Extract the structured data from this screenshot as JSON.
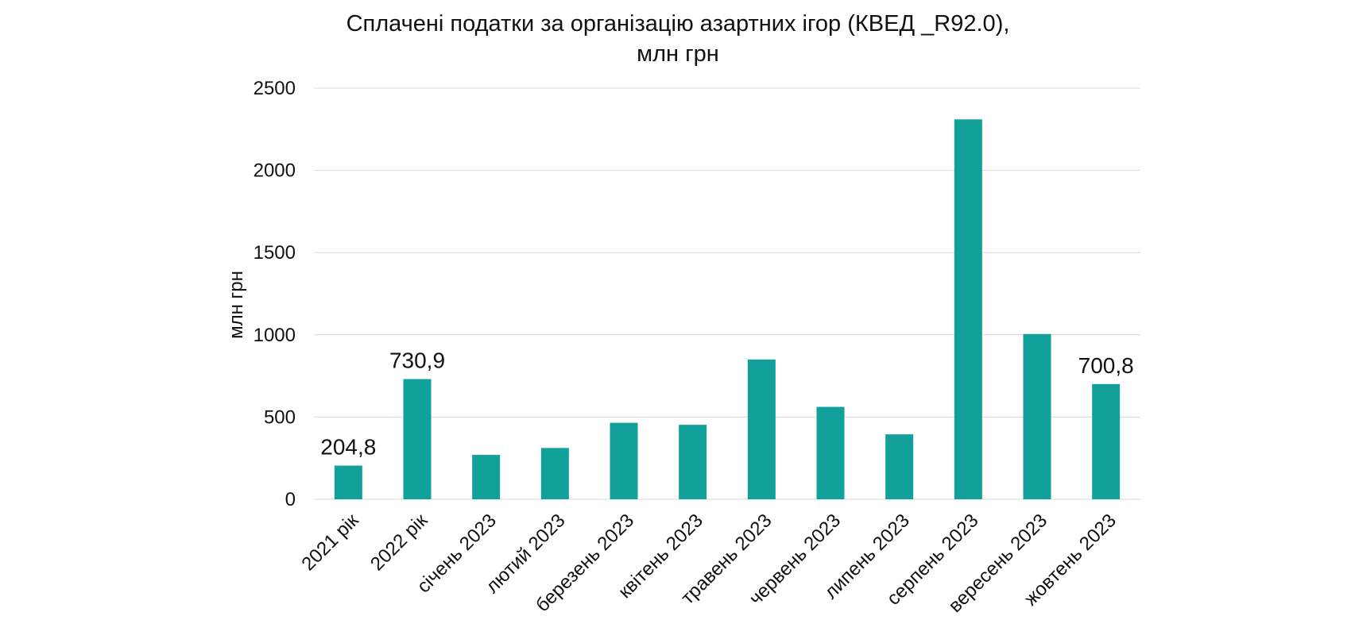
{
  "chart_data": {
    "type": "bar",
    "title_line1": "Сплачені податки за організацію азартних ігор (КВЕД _R92.0),",
    "title_line2": "млн грн",
    "ylabel": "млн грн",
    "xlabel": "",
    "ylim": [
      0,
      2500
    ],
    "yticks": [
      0,
      500,
      1000,
      1500,
      2000,
      2500
    ],
    "grid": true,
    "bar_color": "#12a19a",
    "categories": [
      "2021 рік",
      "2022 рік",
      "січень 2023",
      "лютий 2023",
      "березень 2023",
      "квітень 2023",
      "травень 2023",
      "червень 2023",
      "липень 2023",
      "серпень 2023",
      "вересень 2023",
      "жовтень 2023"
    ],
    "values": [
      204.8,
      730.9,
      270,
      312,
      465,
      453,
      850,
      562,
      395,
      2310,
      1005,
      700.8
    ],
    "data_labels": [
      "204,8",
      "730,9",
      "",
      "",
      "",
      "",
      "",
      "",
      "",
      "",
      "",
      "700,8"
    ]
  }
}
